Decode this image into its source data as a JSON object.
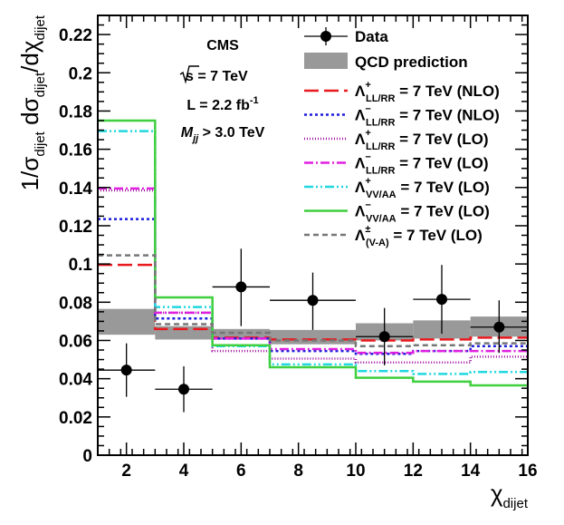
{
  "chart_data": {
    "type": "line",
    "experiment": "CMS",
    "annotations": {
      "energy": {
        "root": "s",
        "rest": " = 7 TeV"
      },
      "lumi": {
        "main": "L = 2.2 fb",
        "sup": "-1"
      },
      "mass_cut": {
        "sym": "M",
        "sub": "jj",
        "rest": " > 3.0 TeV"
      }
    },
    "xlabel": {
      "main": "χ",
      "sub": "dijet"
    },
    "ylabel": {
      "a": "1/σ",
      "a_sub": "dijet",
      "b": " dσ",
      "b_sub": "dijet",
      "c": "/dχ",
      "c_sub": "dijet"
    },
    "xlim": [
      1,
      16
    ],
    "ylim": [
      0,
      0.23
    ],
    "xticks": [
      2,
      4,
      6,
      8,
      10,
      12,
      14,
      16
    ],
    "yticks": [
      0,
      0.02,
      0.04,
      0.06,
      0.08,
      0.1,
      0.12,
      0.14,
      0.16,
      0.18,
      0.2,
      0.22
    ],
    "ytick_labels": [
      "0",
      "0.02",
      "0.04",
      "0.06",
      "0.08",
      "0.1",
      "0.12",
      "0.14",
      "0.16",
      "0.18",
      "0.2",
      "0.22"
    ],
    "bin_edges": [
      1,
      3,
      5,
      7,
      10,
      12,
      14,
      16
    ],
    "data": {
      "name": "Data",
      "points": [
        {
          "x": 2,
          "y": 0.0445,
          "xerr": 1,
          "ylow": 0.0305,
          "yhigh": 0.0585
        },
        {
          "x": 4,
          "y": 0.0345,
          "xerr": 1,
          "ylow": 0.0225,
          "yhigh": 0.0465
        },
        {
          "x": 6,
          "y": 0.088,
          "xerr": 1,
          "ylow": 0.0675,
          "yhigh": 0.108
        },
        {
          "x": 8.5,
          "y": 0.081,
          "xerr": 1.5,
          "ylow": 0.0655,
          "yhigh": 0.0955
        },
        {
          "x": 11,
          "y": 0.062,
          "xerr": 1,
          "ylow": 0.047,
          "yhigh": 0.077
        },
        {
          "x": 13,
          "y": 0.0815,
          "xerr": 1,
          "ylow": 0.0635,
          "yhigh": 0.0995
        },
        {
          "x": 15,
          "y": 0.067,
          "xerr": 1,
          "ylow": 0.0535,
          "yhigh": 0.081
        }
      ]
    },
    "qcd_band": {
      "name": "QCD prediction",
      "color": "#999999",
      "low": [
        0.063,
        0.0605,
        0.0605,
        0.058,
        0.06,
        0.061,
        0.062
      ],
      "high": [
        0.0765,
        0.0675,
        0.066,
        0.0655,
        0.069,
        0.0705,
        0.0725
      ]
    },
    "series": [
      {
        "name": {
          "sym": "Λ",
          "sup": "+",
          "sub": "LL/RR",
          "rest": " = 7 TeV (NLO)"
        },
        "color": "#e8191e",
        "dash": "16,6",
        "width": 2.5,
        "values": [
          0.0995,
          0.066,
          0.0615,
          0.0605,
          0.06,
          0.0605,
          0.0615
        ]
      },
      {
        "name": {
          "sym": "Λ",
          "sup": "−",
          "sub": "LL/RR",
          "rest": " = 7 TeV (NLO)"
        },
        "color": "#1d1ddc",
        "dash": "3,3",
        "width": 2.5,
        "values": [
          0.1235,
          0.0715,
          0.061,
          0.0545,
          0.053,
          0.0545,
          0.057
        ]
      },
      {
        "name": {
          "sym": "Λ",
          "sup": "+",
          "sub": "LL/RR",
          "rest": " = 7 TeV (LO)"
        },
        "color": "#a012a0",
        "dash": "1,2",
        "width": 2.5,
        "values": [
          0.1385,
          0.0745,
          0.0545,
          0.0505,
          0.0485,
          0.0485,
          0.0515
        ]
      },
      {
        "name": {
          "sym": "Λ",
          "sup": "−",
          "sub": "LL/RR",
          "rest": " = 7 TeV (LO)"
        },
        "color": "#e020e0",
        "dash": "10,3,2,3",
        "width": 2.5,
        "values": [
          0.1395,
          0.0745,
          0.061,
          0.0555,
          0.0535,
          0.0545,
          0.0545
        ]
      },
      {
        "name": {
          "sym": "Λ",
          "sup": "+",
          "sub": "VV/AA",
          "rest": " = 7 TeV (LO)"
        },
        "color": "#20d8e0",
        "dash": "10,3,2,3,2,3",
        "width": 2.5,
        "values": [
          0.1695,
          0.0775,
          0.057,
          0.0475,
          0.044,
          0.0425,
          0.0435
        ]
      },
      {
        "name": {
          "sym": "Λ",
          "sup": "−",
          "sub": "VV/AA",
          "rest": " = 7 TeV (LO)"
        },
        "color": "#3fcf3f",
        "dash": "",
        "width": 2.5,
        "values": [
          0.175,
          0.0825,
          0.0575,
          0.046,
          0.0405,
          0.0385,
          0.0365
        ]
      },
      {
        "name": {
          "sym": "Λ",
          "sup": "±",
          "sub": "(V-A)",
          "rest": "  = 7 TeV (LO)"
        },
        "color": "#777777",
        "dash": "6,4",
        "width": 2.5,
        "values": [
          0.1045,
          0.0685,
          0.064,
          0.06,
          0.057,
          0.0575,
          0.0585
        ]
      }
    ],
    "legend": {
      "placement": "top-right"
    }
  }
}
